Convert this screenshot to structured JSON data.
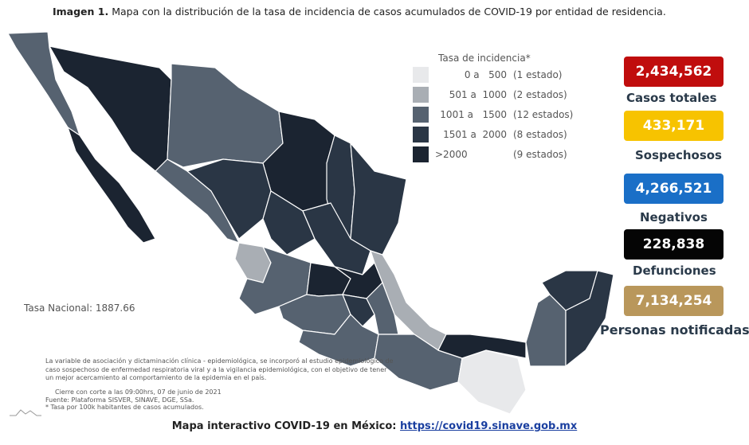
{
  "title": {
    "label": "Imagen 1.",
    "text": "Mapa con la distribución de la tasa de incidencia de casos acumulados de COVID-19 por entidad de residencia."
  },
  "legend": {
    "title": "Tasa de incidencia*",
    "items": [
      {
        "range": "0 a   500",
        "count": "(1 estado)",
        "color": "#e8e9eb"
      },
      {
        "range": "501 a  1000",
        "count": "(2 estados)",
        "color": "#a9aeb4"
      },
      {
        "range": "1001 a   1500",
        "count": "(12 estados)",
        "color": "#566270"
      },
      {
        "range": "1501 a  2000",
        "count": "(8 estados)",
        "color": "#2a3645"
      },
      {
        "range": ">2000",
        "count": "(9 estados)",
        "color": "#1b2431"
      }
    ]
  },
  "national_rate": "Tasa Nacional: 1887.66",
  "stats": [
    {
      "value": "2,434,562",
      "label": "Casos totales",
      "color": "#c00d0d"
    },
    {
      "value": "433,171",
      "label": "Sospechosos",
      "color": "#f7c300"
    },
    {
      "value": "4,266,521",
      "label": "Negativos",
      "color": "#1a6fc7"
    },
    {
      "value": "228,838",
      "label": "Defunciones",
      "color": "#050505"
    },
    {
      "value": "7,134,254",
      "label": "Personas notificadas",
      "color": "#b9975b"
    }
  ],
  "notes": {
    "paragraph": "La variable de asociación y dictaminación clínica - epidemiológica, se incorporó al estudio epidemiológico de caso sospechoso de enfermedad respiratoria viral y a la vigilancia epidemiológica, con el objetivo de tener un mejor acercamiento al comportamiento de la epidemia en el país.",
    "cutoff": "Cierre con corte a las 09:00hrs, 07 de junio de 2021",
    "source": "Fuente: Plataforma SISVER, SINAVE, DGE, SSa.",
    "rate_note": "* Tasa por 100k habitantes de casos acumulados."
  },
  "footer": {
    "label": "Mapa interactivo COVID-19 en México:",
    "link": "https://covid19.sinave.gob.mx"
  }
}
